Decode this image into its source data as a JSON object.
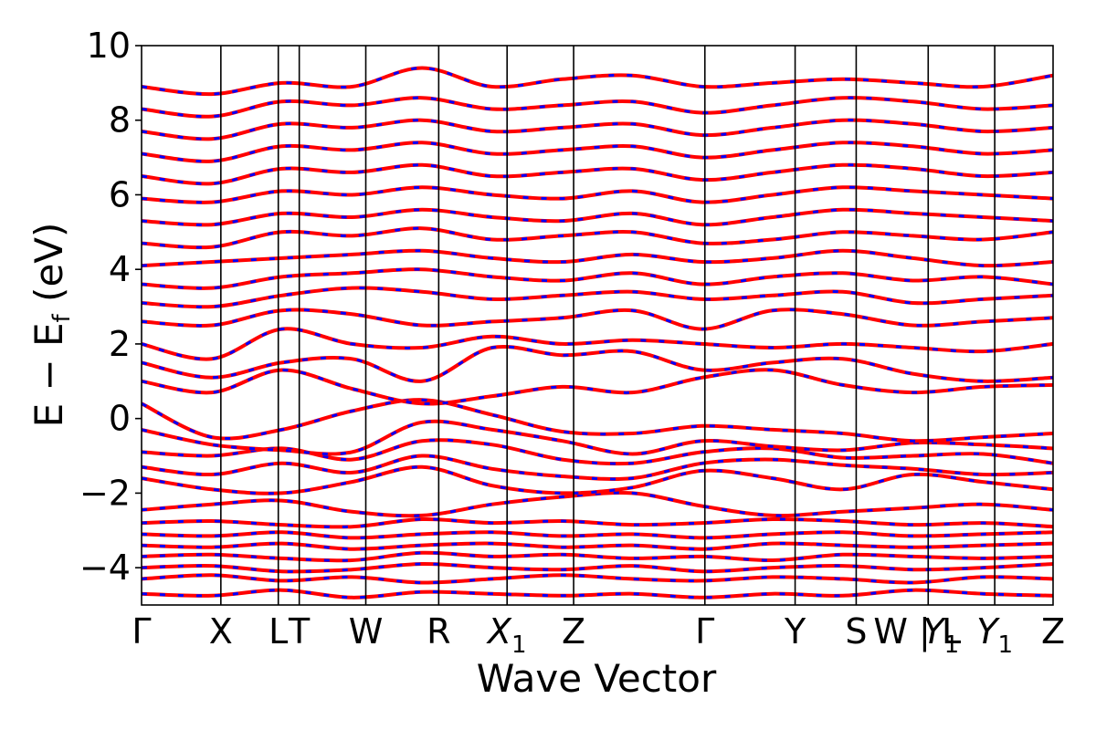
{
  "chart_data": {
    "type": "line",
    "xlabel": "Wave Vector",
    "ylabel": "E − Eᶠ (eV)",
    "ylabel_main": "E − E",
    "ylabel_sub": "f",
    "ylabel_unit": " (eV)",
    "ylim": [
      -5,
      10
    ],
    "yticks": [
      -4,
      -2,
      0,
      2,
      4,
      6,
      8,
      10
    ],
    "ytick_labels": [
      "−4",
      "−2",
      "0",
      "2",
      "4",
      "6",
      "8",
      "10"
    ],
    "xlim": [
      0,
      1
    ],
    "high_symmetry_points": [
      {
        "label": "Γ",
        "x": 0.0
      },
      {
        "label": "X",
        "x": 0.087
      },
      {
        "label": "L",
        "x": 0.15
      },
      {
        "label": "T",
        "x": 0.173
      },
      {
        "label": "W",
        "x": 0.246
      },
      {
        "label": "R",
        "x": 0.326
      },
      {
        "label": "X",
        "sub": "1",
        "x": 0.401
      },
      {
        "label": "Z",
        "x": 0.474
      },
      {
        "label": "Γ",
        "x": 0.618
      },
      {
        "label": "Y",
        "x": 0.717
      },
      {
        "label": "S",
        "x": 0.784
      },
      {
        "label": "W | L",
        "x": 0.863
      },
      {
        "label": "Y",
        "sub": "1",
        "x": 0.865
      },
      {
        "label": "Y",
        "sub": "1",
        "x": 0.936
      },
      {
        "label": "Z",
        "x": 1.0
      }
    ],
    "vlines": [
      0.087,
      0.15,
      0.173,
      0.246,
      0.326,
      0.401,
      0.474,
      0.618,
      0.717,
      0.784,
      0.863,
      0.936
    ],
    "series": [
      {
        "color": "#ff0000",
        "style": "solid"
      },
      {
        "color": "#0000ff",
        "style": "dashed"
      }
    ],
    "bands": [
      [
        -4.7,
        -4.75,
        -4.6,
        -4.8,
        -4.65,
        -4.7,
        -4.75,
        -4.7,
        -4.8,
        -4.7,
        -4.75,
        -4.6,
        -4.7,
        -4.75
      ],
      [
        -4.3,
        -4.2,
        -4.35,
        -4.25,
        -4.4,
        -4.3,
        -4.2,
        -4.3,
        -4.35,
        -4.25,
        -4.3,
        -4.4,
        -4.25,
        -4.3
      ],
      [
        -4.0,
        -3.95,
        -4.1,
        -4.05,
        -3.9,
        -4.0,
        -4.05,
        -3.95,
        -4.1,
        -4.0,
        -3.95,
        -4.05,
        -4.0,
        -3.9
      ],
      [
        -3.7,
        -3.65,
        -3.75,
        -3.8,
        -3.6,
        -3.7,
        -3.65,
        -3.75,
        -3.7,
        -3.8,
        -3.65,
        -3.7,
        -3.75,
        -3.7
      ],
      [
        -3.4,
        -3.45,
        -3.35,
        -3.5,
        -3.4,
        -3.35,
        -3.45,
        -3.4,
        -3.5,
        -3.35,
        -3.4,
        -3.45,
        -3.4,
        -3.35
      ],
      [
        -3.1,
        -3.15,
        -3.05,
        -3.2,
        -3.1,
        -3.05,
        -3.15,
        -3.1,
        -3.2,
        -3.1,
        -3.05,
        -3.15,
        -3.1,
        -3.05
      ],
      [
        -2.8,
        -2.75,
        -2.85,
        -2.9,
        -2.7,
        -2.8,
        -2.75,
        -2.85,
        -2.8,
        -2.7,
        -2.75,
        -2.85,
        -2.8,
        -2.9
      ],
      [
        -2.45,
        -2.3,
        -2.2,
        -2.5,
        -2.6,
        -2.3,
        -2.1,
        -2.0,
        -2.35,
        -2.6,
        -2.5,
        -2.4,
        -2.3,
        -2.45
      ],
      [
        -1.6,
        -1.9,
        -2.0,
        -1.7,
        -1.3,
        -1.8,
        -2.0,
        -1.85,
        -1.4,
        -1.6,
        -1.9,
        -1.5,
        -1.7,
        -1.9
      ],
      [
        -1.3,
        -1.5,
        -1.2,
        -1.45,
        -1.0,
        -1.35,
        -1.55,
        -1.6,
        -1.2,
        -1.1,
        -1.25,
        -1.35,
        -1.5,
        -1.45
      ],
      [
        -0.9,
        -1.0,
        -0.8,
        -1.1,
        -0.6,
        -0.7,
        -1.1,
        -1.2,
        -0.9,
        -0.8,
        -1.05,
        -1.0,
        -0.95,
        -1.2
      ],
      [
        -0.3,
        -0.7,
        -0.85,
        -0.9,
        -0.1,
        -0.3,
        -0.6,
        -0.95,
        -0.6,
        -0.75,
        -0.85,
        -0.65,
        -0.7,
        -0.8
      ],
      [
        0.4,
        -0.5,
        -0.3,
        0.2,
        0.5,
        0.1,
        -0.35,
        -0.4,
        -0.2,
        -0.3,
        -0.4,
        -0.6,
        -0.5,
        -0.4
      ],
      [
        1.0,
        0.7,
        1.3,
        0.8,
        0.4,
        0.6,
        0.85,
        0.7,
        1.1,
        1.3,
        0.9,
        0.7,
        0.85,
        0.9
      ],
      [
        1.5,
        1.1,
        1.5,
        1.6,
        1.0,
        1.9,
        1.7,
        1.8,
        1.3,
        1.5,
        1.6,
        1.2,
        1.0,
        1.1
      ],
      [
        2.0,
        1.6,
        2.4,
        2.0,
        1.9,
        2.2,
        2.0,
        2.1,
        2.0,
        1.9,
        2.0,
        1.9,
        1.8,
        2.0
      ],
      [
        2.6,
        2.5,
        2.9,
        2.8,
        2.5,
        2.6,
        2.7,
        2.9,
        2.4,
        2.9,
        2.8,
        2.5,
        2.6,
        2.7
      ],
      [
        3.1,
        3.0,
        3.3,
        3.5,
        3.4,
        3.2,
        3.3,
        3.4,
        3.2,
        3.3,
        3.4,
        3.1,
        3.2,
        3.3
      ],
      [
        3.6,
        3.5,
        3.8,
        3.9,
        4.0,
        3.8,
        3.7,
        3.9,
        3.6,
        3.8,
        3.9,
        3.7,
        3.8,
        3.6
      ],
      [
        4.1,
        4.2,
        4.3,
        4.4,
        4.5,
        4.3,
        4.2,
        4.4,
        4.2,
        4.3,
        4.5,
        4.3,
        4.1,
        4.2
      ],
      [
        4.7,
        4.6,
        5.0,
        4.9,
        5.1,
        4.8,
        4.9,
        5.0,
        4.7,
        4.8,
        5.0,
        4.9,
        4.8,
        5.0
      ],
      [
        5.3,
        5.2,
        5.5,
        5.4,
        5.6,
        5.4,
        5.3,
        5.5,
        5.2,
        5.4,
        5.6,
        5.5,
        5.4,
        5.3
      ],
      [
        5.9,
        5.8,
        6.1,
        6.0,
        6.2,
        6.0,
        5.9,
        6.1,
        5.8,
        6.0,
        6.2,
        6.1,
        6.0,
        5.9
      ],
      [
        6.5,
        6.3,
        6.7,
        6.6,
        6.8,
        6.5,
        6.6,
        6.7,
        6.4,
        6.6,
        6.8,
        6.7,
        6.5,
        6.6
      ],
      [
        7.1,
        6.9,
        7.3,
        7.2,
        7.4,
        7.1,
        7.2,
        7.3,
        7.0,
        7.2,
        7.4,
        7.3,
        7.1,
        7.2
      ],
      [
        7.7,
        7.5,
        7.9,
        7.8,
        8.0,
        7.7,
        7.8,
        7.9,
        7.6,
        7.8,
        8.0,
        7.9,
        7.7,
        7.8
      ],
      [
        8.3,
        8.1,
        8.5,
        8.4,
        8.6,
        8.3,
        8.4,
        8.5,
        8.2,
        8.4,
        8.6,
        8.5,
        8.3,
        8.4
      ],
      [
        8.9,
        8.7,
        9.0,
        8.9,
        9.4,
        8.9,
        9.1,
        9.2,
        8.9,
        9.0,
        9.1,
        9.0,
        8.9,
        9.2
      ]
    ]
  }
}
